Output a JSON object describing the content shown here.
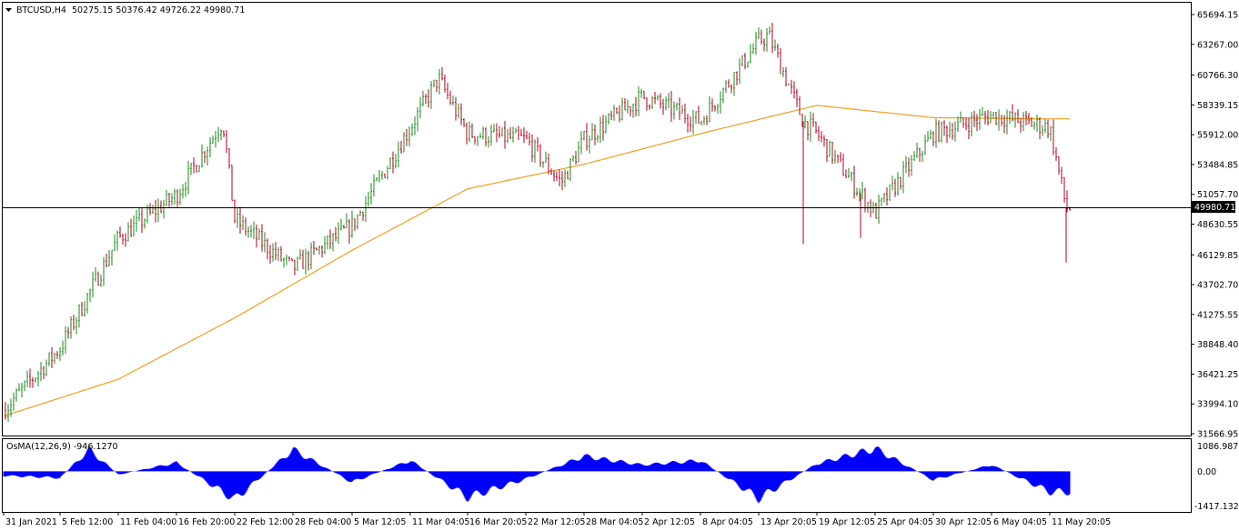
{
  "header": {
    "symbol_label": "BTCUSD,H4",
    "ohlc_text": "50275.15 50376.42 49726.22 49980.71",
    "dropdown_icon": "triangle-down-icon"
  },
  "indicator": {
    "label": "OsMA(12,26,9) -946.1270",
    "scale_top": "1086.9877",
    "scale_zero": "0.00",
    "scale_bottom": "-1417.1327"
  },
  "price_scale": [
    "65694.15",
    "63267.00",
    "60766.30",
    "58339.15",
    "55912.00",
    "53484.85",
    "51057.70",
    "48630.55",
    "46129.85",
    "43702.70",
    "41275.55",
    "38848.40",
    "36421.25",
    "33994.10",
    "31566.95"
  ],
  "current_price_label": "49980.71",
  "time_labels": [
    "31 Jan 2021",
    "5 Feb 12:00",
    "11 Feb 04:00",
    "16 Feb 20:00",
    "22 Feb 12:00",
    "28 Feb 04:00",
    "5 Mar 12:05",
    "11 Mar 04:05",
    "16 Mar 20:05",
    "22 Mar 12:05",
    "28 Mar 04:05",
    "2 Apr 12:05",
    "8 Apr 04:05",
    "13 Apr 20:05",
    "19 Apr 12:05",
    "25 Apr 04:05",
    "30 Apr 12:05",
    "6 May 04:05",
    "11 May 20:05"
  ],
  "colors": {
    "bull": "#1b8a1b",
    "bear": "#b00020",
    "ma": "#f0a020",
    "osma": "#0000ff",
    "price_line": "#000000",
    "price_label_bg": "#000000",
    "price_label_fg": "#ffffff"
  },
  "chart_data": {
    "type": "candlestick",
    "symbol": "BTCUSD",
    "timeframe": "H4",
    "ylim": [
      31566.95,
      65694.15
    ],
    "last_close": 49980.71,
    "price_anchors": [
      {
        "date": "31 Jan 2021",
        "close": 33500
      },
      {
        "date": "5 Feb 12:00",
        "close": 38500
      },
      {
        "date": "11 Feb 04:00",
        "close": 47500
      },
      {
        "date": "16 Feb 20:00",
        "close": 51000
      },
      {
        "date": "20 Feb",
        "close": 57000
      },
      {
        "date": "22 Feb 12:00",
        "close": 49000
      },
      {
        "date": "28 Feb 04:00",
        "close": 45000
      },
      {
        "date": "5 Mar 12:05",
        "close": 48500
      },
      {
        "date": "11 Mar 04:05",
        "close": 56500
      },
      {
        "date": "13 Mar",
        "close": 60500
      },
      {
        "date": "16 Mar 20:05",
        "close": 56000
      },
      {
        "date": "22 Mar 12:05",
        "close": 55500
      },
      {
        "date": "25 Mar",
        "close": 52000
      },
      {
        "date": "28 Mar 04:05",
        "close": 55500
      },
      {
        "date": "2 Apr 12:05",
        "close": 59000
      },
      {
        "date": "8 Apr 04:05",
        "close": 57000
      },
      {
        "date": "13 Apr 20:05",
        "close": 63500
      },
      {
        "date": "14 Apr",
        "close": 64000
      },
      {
        "date": "18 Apr",
        "close": 57000
      },
      {
        "date": "19 Apr 12:05",
        "close": 56000
      },
      {
        "date": "25 Apr 04:05",
        "close": 49500
      },
      {
        "date": "30 Apr 12:05",
        "close": 56000
      },
      {
        "date": "6 May 04:05",
        "close": 57500
      },
      {
        "date": "11 May 20:05",
        "close": 56500
      },
      {
        "date": "12 May",
        "close": 49980.71
      }
    ],
    "spikes": [
      {
        "date": "18 Apr",
        "low": 47000
      },
      {
        "date": "23 Apr",
        "low": 47500
      },
      {
        "date": "12 May",
        "low": 45500
      }
    ],
    "ma_anchors": [
      {
        "date": "31 Jan 2021",
        "value": 33000
      },
      {
        "date": "11 Feb 04:00",
        "value": 36000
      },
      {
        "date": "22 Feb 12:00",
        "value": 41000
      },
      {
        "date": "5 Mar 12:05",
        "value": 46500
      },
      {
        "date": "16 Mar 20:05",
        "value": 51500
      },
      {
        "date": "28 Mar 04:05",
        "value": 53500
      },
      {
        "date": "8 Apr 04:05",
        "value": 56000
      },
      {
        "date": "19 Apr 12:05",
        "value": 58300
      },
      {
        "date": "30 Apr 12:05",
        "value": 57300
      },
      {
        "date": "11 May 20:05",
        "value": 57200
      }
    ],
    "osma": {
      "name": "OsMA(12,26,9)",
      "last": -946.127,
      "ylim": [
        -1417.1327,
        1086.9877
      ],
      "anchors": [
        {
          "date": "31 Jan 2021",
          "value": -200
        },
        {
          "date": "5 Feb 12:00",
          "value": -300
        },
        {
          "date": "7 Feb",
          "value": 1000
        },
        {
          "date": "11 Feb 04:00",
          "value": -150
        },
        {
          "date": "16 Feb 20:00",
          "value": 400
        },
        {
          "date": "22 Feb 12:00",
          "value": -1300
        },
        {
          "date": "28 Feb 04:00",
          "value": 1000
        },
        {
          "date": "5 Mar 12:05",
          "value": -500
        },
        {
          "date": "11 Mar 04:05",
          "value": 500
        },
        {
          "date": "16 Mar 20:05",
          "value": -1200
        },
        {
          "date": "22 Mar 12:05",
          "value": -350
        },
        {
          "date": "28 Mar 04:05",
          "value": 700
        },
        {
          "date": "2 Apr 12:05",
          "value": 300
        },
        {
          "date": "8 Apr 04:05",
          "value": 500
        },
        {
          "date": "13 Apr 20:05",
          "value": -1250
        },
        {
          "date": "19 Apr 12:05",
          "value": 350
        },
        {
          "date": "25 Apr 04:05",
          "value": 1050
        },
        {
          "date": "30 Apr 12:05",
          "value": -400
        },
        {
          "date": "6 May 04:05",
          "value": 300
        },
        {
          "date": "11 May 20:05",
          "value": -946.127
        }
      ]
    }
  }
}
